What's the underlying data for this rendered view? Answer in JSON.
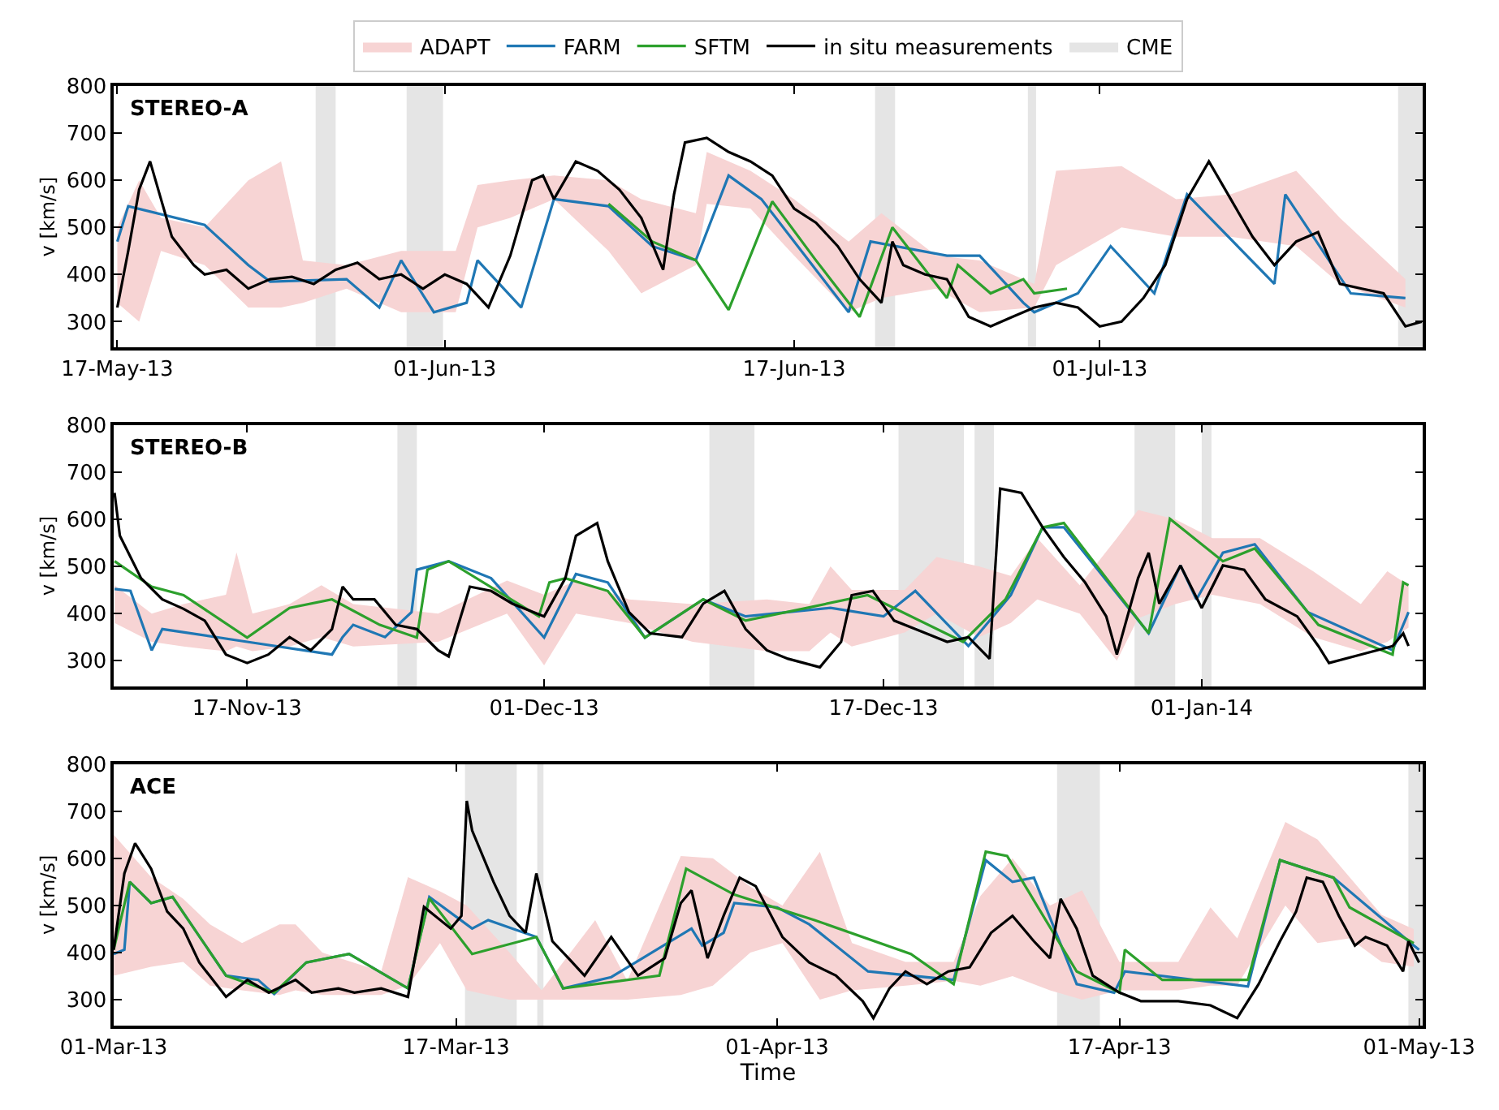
{
  "chart_data": [
    {
      "type": "line",
      "title": "STEREO-A",
      "ylabel": "v [km/s]",
      "legend": "top",
      "grid": false,
      "marker": "none",
      "xlim": [
        "2013-05-16T20:00",
        "2013-07-15T19:00"
      ],
      "xticks": [
        {
          "value": "2013-05-17",
          "label": "17-May-13"
        },
        {
          "value": "2013-06-01",
          "label": "01-Jun-13"
        },
        {
          "value": "2013-06-17",
          "label": "17-Jun-13"
        },
        {
          "value": "2013-07-01",
          "label": "01-Jul-13"
        }
      ],
      "ylim": [
        245,
        800
      ],
      "yticks": [
        300,
        400,
        500,
        600,
        700,
        800
      ],
      "series": [
        {
          "name": "ADAPT",
          "type": "area",
          "color": "#f7d4d4",
          "values": [
            null,
            null,
            null,
            null,
            null,
            null,
            null,
            null,
            null,
            null,
            null,
            null,
            null,
            null,
            null,
            null,
            null,
            null,
            null,
            null,
            null,
            null,
            null,
            null,
            null,
            null,
            null,
            null,
            null,
            null,
            null
          ],
          "x": [
            "2013-05-17",
            "2013-05-18",
            "2013-05-19",
            "2013-05-21",
            "2013-05-23",
            "2013-05-24T12:00",
            "2013-05-25T12:00",
            "2013-05-27T12:00",
            "2013-05-30",
            "2013-06-01T12:00",
            "2013-06-02T12:00",
            "2013-06-04",
            "2013-06-06",
            "2013-06-08T12:00",
            "2013-06-10",
            "2013-06-12T12:00",
            "2013-06-13",
            "2013-06-15",
            "2013-06-17",
            "2013-06-19T12:00",
            "2013-06-21",
            "2013-06-23T12:00",
            "2013-06-25T12:00",
            "2013-06-28",
            "2013-06-29",
            "2013-07-02",
            "2013-07-04T12:00",
            "2013-07-07",
            "2013-07-10",
            "2013-07-12",
            "2013-07-15"
          ],
          "lower": [
            340,
            300,
            450,
            420,
            330,
            330,
            340,
            370,
            320,
            320,
            500,
            520,
            560,
            450,
            360,
            420,
            550,
            540,
            440,
            320,
            350,
            370,
            320,
            330,
            420,
            500,
            480,
            480,
            460,
            380,
            330
          ],
          "upper": [
            500,
            600,
            520,
            500,
            600,
            640,
            430,
            420,
            450,
            450,
            590,
            600,
            610,
            600,
            560,
            530,
            660,
            620,
            560,
            470,
            530,
            440,
            430,
            380,
            620,
            630,
            560,
            570,
            620,
            520,
            390
          ]
        },
        {
          "name": "FARM",
          "color": "#1f77b4",
          "x": [
            "2013-05-17",
            "2013-05-17T12:00",
            "2013-05-21",
            "2013-05-23",
            "2013-05-24",
            "2013-05-27T12:00",
            "2013-05-29",
            "2013-05-30",
            "2013-05-31T12:00",
            "2013-06-02",
            "2013-06-02T12:00",
            "2013-06-04T12:00",
            "2013-06-06",
            "2013-06-08T12:00",
            "2013-06-10T12:00",
            "2013-06-12T12:00",
            "2013-06-14",
            "2013-06-15T12:00",
            "2013-06-19T12:00",
            "2013-06-20T12:00",
            "2013-06-24",
            "2013-06-25T12:00",
            "2013-06-27T12:00",
            "2013-06-28",
            "2013-06-30",
            "2013-07-01T12:00",
            "2013-07-03T12:00",
            "2013-07-05",
            "2013-07-09",
            "2013-07-09T12:00",
            "2013-07-12T12:00",
            "2013-07-15"
          ],
          "values": [
            470,
            545,
            505,
            420,
            385,
            390,
            330,
            430,
            320,
            340,
            430,
            330,
            560,
            545,
            460,
            430,
            610,
            560,
            320,
            470,
            440,
            440,
            340,
            320,
            360,
            460,
            360,
            570,
            380,
            570,
            360,
            350
          ]
        },
        {
          "name": "SFTM",
          "color": "#2ca02c",
          "x": [
            "2013-06-08T12:00",
            "2013-06-10T12:00",
            "2013-06-12T12:00",
            "2013-06-14",
            "2013-06-16",
            "2013-06-18",
            "2013-06-20",
            "2013-06-21T12:00",
            "2013-06-24",
            "2013-06-24T12:00",
            "2013-06-26",
            "2013-06-27T12:00",
            "2013-06-28",
            "2013-06-29T12:00"
          ],
          "values": [
            550,
            470,
            430,
            325,
            555,
            430,
            310,
            500,
            350,
            420,
            360,
            390,
            360,
            370
          ]
        },
        {
          "name": "in situ measurements",
          "color": "#000000",
          "x": [
            "2013-05-17",
            "2013-05-17T12:00",
            "2013-05-18",
            "2013-05-18T12:00",
            "2013-05-19",
            "2013-05-19T12:00",
            "2013-05-20T12:00",
            "2013-05-21",
            "2013-05-22",
            "2013-05-23",
            "2013-05-24",
            "2013-05-25",
            "2013-05-26",
            "2013-05-27",
            "2013-05-28",
            "2013-05-29",
            "2013-05-30",
            "2013-05-31",
            "2013-06-01",
            "2013-06-02",
            "2013-06-03",
            "2013-06-04",
            "2013-06-05",
            "2013-06-05T12:00",
            "2013-06-06",
            "2013-06-07",
            "2013-06-08",
            "2013-06-09",
            "2013-06-10",
            "2013-06-11",
            "2013-06-11T12:00",
            "2013-06-12",
            "2013-06-13",
            "2013-06-14",
            "2013-06-15",
            "2013-06-16",
            "2013-06-17",
            "2013-06-18",
            "2013-06-19",
            "2013-06-20",
            "2013-06-21",
            "2013-06-21T12:00",
            "2013-06-22",
            "2013-06-23",
            "2013-06-24",
            "2013-06-25",
            "2013-06-26",
            "2013-06-27",
            "2013-06-28",
            "2013-06-29",
            "2013-06-30",
            "2013-07-01",
            "2013-07-02",
            "2013-07-03",
            "2013-07-04",
            "2013-07-05",
            "2013-07-06",
            "2013-07-07",
            "2013-07-08",
            "2013-07-09",
            "2013-07-10",
            "2013-07-11",
            "2013-07-12",
            "2013-07-13",
            "2013-07-14",
            "2013-07-15",
            "2013-07-15T18:00"
          ],
          "values": [
            330,
            450,
            580,
            640,
            560,
            480,
            420,
            400,
            410,
            370,
            390,
            395,
            380,
            410,
            425,
            390,
            400,
            370,
            400,
            380,
            330,
            440,
            600,
            610,
            560,
            640,
            620,
            580,
            520,
            410,
            570,
            680,
            690,
            660,
            640,
            610,
            540,
            510,
            460,
            390,
            340,
            470,
            420,
            400,
            390,
            310,
            290,
            310,
            330,
            340,
            330,
            290,
            300,
            350,
            420,
            560,
            640,
            560,
            480,
            420,
            470,
            490,
            380,
            370,
            360,
            290,
            300
          ]
        }
      ],
      "bands": [
        {
          "axis": "x",
          "from": "2013-05-26T02:00",
          "to": "2013-05-27T00:00",
          "label": "CME",
          "color": "#e5e5e5"
        },
        {
          "axis": "x",
          "from": "2013-05-30T06:00",
          "to": "2013-05-31T22:00",
          "color": "#e5e5e5"
        },
        {
          "axis": "x",
          "from": "2013-06-20T17:00",
          "to": "2013-06-21T15:00",
          "color": "#e5e5e5"
        },
        {
          "axis": "x",
          "from": "2013-06-27T17:00",
          "to": "2013-06-28T02:00",
          "color": "#e5e5e5"
        },
        {
          "axis": "x",
          "from": "2013-07-14T16:00",
          "to": "2013-07-15T19:00",
          "color": "#e5e5e5"
        }
      ]
    },
    {
      "type": "line",
      "title": "STEREO-B",
      "ylabel": "v [km/s]",
      "legend": false,
      "grid": false,
      "marker": "none",
      "xlim": [
        "2013-11-10T17:00",
        "2014-01-11T10:00"
      ],
      "xticks": [
        {
          "value": "2013-11-17",
          "label": "17-Nov-13"
        },
        {
          "value": "2013-12-01",
          "label": "01-Dec-13"
        },
        {
          "value": "2013-12-17",
          "label": "17-Dec-13"
        },
        {
          "value": "2014-01-01",
          "label": "01-Jan-14"
        }
      ],
      "ylim": [
        245,
        800
      ],
      "yticks": [
        300,
        400,
        500,
        600,
        700,
        800
      ],
      "series": [
        {
          "type": "area",
          "color": "#f7d4d4",
          "values": [
            null,
            null,
            null,
            null,
            null,
            null,
            null,
            null,
            null,
            null,
            null,
            null,
            null,
            null,
            null,
            null,
            null,
            null,
            null,
            null,
            null,
            null,
            null,
            null,
            null,
            null,
            null,
            null,
            null,
            null,
            null,
            null,
            null,
            null
          ],
          "x": [
            "2013-11-10T18:00",
            "2013-11-12T12:00",
            "2013-11-14",
            "2013-11-16",
            "2013-11-16T12:00",
            "2013-11-17T06:00",
            "2013-11-19",
            "2013-11-20T12:00",
            "2013-11-22",
            "2013-11-26",
            "2013-11-29T06:00",
            "2013-12-01",
            "2013-12-02T12:00",
            "2013-12-05",
            "2013-12-08",
            "2013-12-11T12:00",
            "2013-12-13T12:00",
            "2013-12-14T12:00",
            "2013-12-15T12:00",
            "2013-12-18",
            "2013-12-19T12:00",
            "2013-12-21T12:00",
            "2013-12-23",
            "2013-12-24T06:00",
            "2013-12-26T06:00",
            "2013-12-28",
            "2013-12-29",
            "2013-12-30T18:00",
            "2014-01-01T12:00",
            "2014-01-03T18:00",
            "2014-01-06T06:00",
            "2014-01-08T12:00",
            "2014-01-09T18:00",
            "2014-01-10T18:00"
          ],
          "lower": [
            380,
            340,
            330,
            320,
            330,
            320,
            330,
            350,
            330,
            340,
            400,
            290,
            400,
            380,
            340,
            320,
            320,
            360,
            330,
            360,
            400,
            350,
            380,
            430,
            400,
            300,
            390,
            420,
            440,
            420,
            350,
            320,
            340,
            370
          ],
          "upper": [
            460,
            400,
            420,
            440,
            530,
            400,
            420,
            460,
            420,
            400,
            470,
            440,
            470,
            430,
            420,
            430,
            420,
            500,
            450,
            450,
            520,
            500,
            480,
            560,
            460,
            560,
            620,
            600,
            560,
            560,
            490,
            420,
            490,
            460
          ]
        },
        {
          "color": "#1f77b4",
          "x": [
            "2013-11-10T18:00",
            "2013-11-11T12:00",
            "2013-11-12T12:00",
            "2013-11-13",
            "2013-11-17",
            "2013-11-21",
            "2013-11-21T12:00",
            "2013-11-22",
            "2013-11-23T12:00",
            "2013-11-24T18:00",
            "2013-11-25",
            "2013-11-26T12:00",
            "2013-11-28T12:00",
            "2013-12-01",
            "2013-12-02T12:00",
            "2013-12-04",
            "2013-12-05T18:00",
            "2013-12-08T12:00",
            "2013-12-10T12:00",
            "2013-12-14T12:00",
            "2013-12-17",
            "2013-12-18T12:00",
            "2013-12-21",
            "2013-12-23",
            "2013-12-24T12:00",
            "2013-12-25T12:00",
            "2013-12-29T12:00",
            "2013-12-31",
            "2013-12-31T18:00",
            "2014-01-02",
            "2014-01-03T12:00",
            "2014-01-06",
            "2014-01-10",
            "2014-01-10T18:00"
          ],
          "values": [
            452,
            448,
            322,
            367,
            340,
            313,
            350,
            376,
            350,
            403,
            493,
            511,
            475,
            349,
            484,
            466,
            349,
            430,
            394,
            412,
            394,
            448,
            331,
            439,
            583,
            583,
            358,
            502,
            430,
            529,
            547,
            403,
            322,
            403
          ]
        },
        {
          "color": "#2ca02c",
          "x": [
            "2013-11-10T18:00",
            "2013-11-12T12:00",
            "2013-11-14",
            "2013-11-17",
            "2013-11-19",
            "2013-11-21",
            "2013-11-23T06:00",
            "2013-11-25",
            "2013-11-25T12:00",
            "2013-11-26T12:00",
            "2013-11-30T18:00",
            "2013-12-01T06:00",
            "2013-12-02",
            "2013-12-04",
            "2013-12-05T18:00",
            "2013-12-08T12:00",
            "2013-12-10T12:00",
            "2013-12-16T06:00",
            "2013-12-20T18:00",
            "2013-12-22T18:00",
            "2013-12-24T12:00",
            "2013-12-25T12:00",
            "2013-12-29T12:00",
            "2013-12-30T12:00",
            "2014-01-02",
            "2014-01-03T12:00",
            "2014-01-06T12:00",
            "2014-01-10",
            "2014-01-10T12:00",
            "2014-01-10T18:00"
          ],
          "values": [
            511,
            457,
            439,
            349,
            412,
            430,
            376,
            349,
            493,
            511,
            394,
            466,
            475,
            448,
            349,
            430,
            385,
            439,
            340,
            430,
            583,
            592,
            358,
            601,
            511,
            538,
            376,
            313,
            466,
            460
          ]
        },
        {
          "color": "#000000",
          "x": [
            "2013-11-10T18:00",
            "2013-11-11",
            "2013-11-12",
            "2013-11-13",
            "2013-11-14",
            "2013-11-15",
            "2013-11-16",
            "2013-11-17",
            "2013-11-18",
            "2013-11-19",
            "2013-11-20",
            "2013-11-21",
            "2013-11-21T12:00",
            "2013-11-22",
            "2013-11-23",
            "2013-11-24",
            "2013-11-25",
            "2013-11-26",
            "2013-11-26T12:00",
            "2013-11-27T12:00",
            "2013-11-28T12:00",
            "2013-11-29T12:00",
            "2013-12-01",
            "2013-12-02",
            "2013-12-02T12:00",
            "2013-12-03T12:00",
            "2013-12-04",
            "2013-12-05",
            "2013-12-06",
            "2013-12-07T12:00",
            "2013-12-08T12:00",
            "2013-12-09T12:00",
            "2013-12-10T12:00",
            "2013-12-11T12:00",
            "2013-12-12T12:00",
            "2013-12-14",
            "2013-12-15",
            "2013-12-15T12:00",
            "2013-12-16T12:00",
            "2013-12-17T12:00",
            "2013-12-18T12:00",
            "2013-12-20",
            "2013-12-21",
            "2013-12-22",
            "2013-12-22T12:00",
            "2013-12-23T12:00",
            "2013-12-24T12:00",
            "2013-12-25T12:00",
            "2013-12-26T12:00",
            "2013-12-27T12:00",
            "2013-12-28",
            "2013-12-29",
            "2013-12-29T12:00",
            "2013-12-30",
            "2013-12-31",
            "2014-01-01",
            "2014-01-02",
            "2014-01-03",
            "2014-01-04",
            "2014-01-05T12:00",
            "2014-01-06T12:00",
            "2014-01-07",
            "2014-01-08T12:00",
            "2014-01-10",
            "2014-01-10T12:00",
            "2014-01-10T18:00"
          ],
          "values": [
            656,
            565,
            475,
            430,
            410,
            385,
            313,
            295,
            313,
            350,
            322,
            367,
            457,
            430,
            430,
            376,
            367,
            322,
            309,
            457,
            448,
            421,
            394,
            475,
            565,
            592,
            511,
            403,
            358,
            350,
            421,
            448,
            367,
            322,
            304,
            286,
            340,
            439,
            448,
            385,
            367,
            340,
            350,
            304,
            665,
            656,
            583,
            520,
            466,
            394,
            313,
            475,
            529,
            421,
            502,
            412,
            502,
            493,
            430,
            394,
            331,
            295,
            313,
            331,
            358,
            331
          ]
        }
      ],
      "bands": [
        {
          "axis": "x",
          "from": "2013-11-24T02:00",
          "to": "2013-11-25T00:00",
          "color": "#e5e5e5"
        },
        {
          "axis": "x",
          "from": "2013-12-08T19:00",
          "to": "2013-12-10T22:00",
          "color": "#e5e5e5"
        },
        {
          "axis": "x",
          "from": "2013-12-17T17:00",
          "to": "2013-12-20T19:00",
          "color": "#e5e5e5"
        },
        {
          "axis": "x",
          "from": "2013-12-21T07:00",
          "to": "2013-12-22T05:00",
          "color": "#e5e5e5"
        },
        {
          "axis": "x",
          "from": "2013-12-28T20:00",
          "to": "2013-12-30T18:00",
          "color": "#e5e5e5"
        },
        {
          "axis": "x",
          "from": "2014-01-01T00:00",
          "to": "2014-01-01T11:00",
          "color": "#e5e5e5"
        }
      ]
    },
    {
      "type": "line",
      "title": "ACE",
      "ylabel": "v [km/s]",
      "xlabel": "Time",
      "legend": false,
      "grid": false,
      "marker": "none",
      "xlim": [
        "2013-03-01",
        "2013-05-01T04:00"
      ],
      "xticks": [
        {
          "value": "2013-03-01",
          "label": "01-Mar-13"
        },
        {
          "value": "2013-03-17",
          "label": "17-Mar-13"
        },
        {
          "value": "2013-04-01",
          "label": "01-Apr-13"
        },
        {
          "value": "2013-04-17",
          "label": "17-Apr-13"
        },
        {
          "value": "2013-05-01",
          "label": "01-May-13"
        }
      ],
      "ylim": [
        245,
        800
      ],
      "yticks": [
        300,
        400,
        500,
        600,
        700,
        800
      ],
      "series": [
        {
          "type": "area",
          "color": "#f7d4d4",
          "values": [
            null,
            null,
            null,
            null,
            null,
            null,
            null,
            null,
            null,
            null,
            null,
            null,
            null,
            null,
            null,
            null,
            null,
            null,
            null,
            null,
            null,
            null,
            null,
            null,
            null,
            null,
            null,
            null,
            null,
            null,
            null,
            null,
            null,
            null,
            null,
            null,
            null
          ],
          "x": [
            "2013-03-01",
            "2013-03-02T18:00",
            "2013-03-04T06:00",
            "2013-03-05T12:00",
            "2013-03-07",
            "2013-03-08T18:00",
            "2013-03-09T12:00",
            "2013-03-10T18:00",
            "2013-03-13T12:00",
            "2013-03-14T18:00",
            "2013-03-16T06:00",
            "2013-03-17T12:00",
            "2013-03-19T12:00",
            "2013-03-21",
            "2013-03-23T12:00",
            "2013-03-25",
            "2013-03-27T12:00",
            "2013-03-29",
            "2013-03-30T18:00",
            "2013-04-01T06:00",
            "2013-04-03",
            "2013-04-04T12:00",
            "2013-04-07",
            "2013-04-09T06:00",
            "2013-04-10T12:00",
            "2013-04-12",
            "2013-04-13T18:00",
            "2013-04-15T06:00",
            "2013-04-17",
            "2013-04-19T18:00",
            "2013-04-21T06:00",
            "2013-04-22T12:00",
            "2013-04-24T18:00",
            "2013-04-26T06:00",
            "2013-04-27T18:00",
            "2013-04-29T06:00",
            "2013-04-30T18:00"
          ],
          "lower": [
            351,
            370,
            380,
            330,
            320,
            310,
            320,
            310,
            310,
            330,
            420,
            320,
            300,
            300,
            300,
            300,
            310,
            330,
            400,
            420,
            300,
            320,
            330,
            340,
            330,
            350,
            320,
            300,
            320,
            320,
            330,
            330,
            500,
            420,
            430,
            380,
            370
          ],
          "upper": [
            650,
            560,
            514,
            460,
            420,
            460,
            460,
            400,
            360,
            560,
            530,
            500,
            400,
            320,
            469,
            340,
            605,
            600,
            540,
            500,
            614,
            420,
            380,
            380,
            520,
            600,
            500,
            532,
            380,
            380,
            496,
            430,
            677,
            640,
            560,
            480,
            450
          ]
        },
        {
          "color": "#1f77b4",
          "x": [
            "2013-03-01",
            "2013-03-01T12:00",
            "2013-03-01T18:00",
            "2013-03-02T18:00",
            "2013-03-03T18:00",
            "2013-03-06T06:00",
            "2013-03-07T18:00",
            "2013-03-08T12:00",
            "2013-03-10",
            "2013-03-12",
            "2013-03-14T18:00",
            "2013-03-15T18:00",
            "2013-03-17T18:00",
            "2013-03-18T12:00",
            "2013-03-20T18:00",
            "2013-03-22",
            "2013-03-24T06:00",
            "2013-03-28",
            "2013-03-28T12:00",
            "2013-03-29T12:00",
            "2013-03-30",
            "2013-04-01",
            "2013-04-02T12:00",
            "2013-04-05T06:00",
            "2013-04-09T06:00",
            "2013-04-10T18:00",
            "2013-04-12",
            "2013-04-13",
            "2013-04-15",
            "2013-04-16T18:00",
            "2013-04-17T06:00",
            "2013-04-23",
            "2013-04-24T12:00",
            "2013-04-27",
            "2013-04-30T18:00",
            "2013-05-01"
          ],
          "values": [
            397,
            406,
            550,
            505,
            518,
            351,
            342,
            312,
            379,
            397,
            324,
            518,
            451,
            469,
            433,
            324,
            348,
            451,
            415,
            442,
            505,
            496,
            460,
            360,
            342,
            596,
            550,
            559,
            333,
            315,
            360,
            328,
            596,
            559,
            415,
            406
          ]
        },
        {
          "color": "#2ca02c",
          "x": [
            "2013-03-01",
            "2013-03-01T18:00",
            "2013-03-02T18:00",
            "2013-03-03T18:00",
            "2013-03-06T06:00",
            "2013-03-08T12:00",
            "2013-03-10",
            "2013-03-12",
            "2013-03-14T18:00",
            "2013-03-15T18:00",
            "2013-03-17T18:00",
            "2013-03-20T18:00",
            "2013-03-22",
            "2013-03-26T12:00",
            "2013-03-27T18:00",
            "2013-03-30",
            "2013-04-02T18:00",
            "2013-04-07T06:00",
            "2013-04-09T06:00",
            "2013-04-10T18:00",
            "2013-04-11T18:00",
            "2013-04-15",
            "2013-04-17",
            "2013-04-17T06:00",
            "2013-04-19",
            "2013-04-23",
            "2013-04-24T12:00",
            "2013-04-27",
            "2013-04-27T18:00",
            "2013-04-30T18:00"
          ],
          "values": [
            406,
            550,
            505,
            518,
            351,
            315,
            379,
            397,
            324,
            515,
            397,
            433,
            324,
            351,
            578,
            523,
            469,
            397,
            333,
            614,
            605,
            360,
            315,
            406,
            342,
            342,
            596,
            559,
            496,
            420
          ]
        },
        {
          "color": "#000000",
          "x": [
            "2013-03-01",
            "2013-03-01T12:00",
            "2013-03-02",
            "2013-03-02T18:00",
            "2013-03-03T12:00",
            "2013-03-04T06:00",
            "2013-03-05",
            "2013-03-06T06:00",
            "2013-03-07T06:00",
            "2013-03-08T06:00",
            "2013-03-09T12:00",
            "2013-03-10T06:00",
            "2013-03-11T12:00",
            "2013-03-12T06:00",
            "2013-03-13T12:00",
            "2013-03-14T18:00",
            "2013-03-15T12:00",
            "2013-03-16T18:00",
            "2013-03-17T06:00",
            "2013-03-17T12:00",
            "2013-03-17T18:00",
            "2013-03-18T18:00",
            "2013-03-19T12:00",
            "2013-03-20T06:00",
            "2013-03-20T18:00",
            "2013-03-21T12:00",
            "2013-03-22T06:00",
            "2013-03-23",
            "2013-03-24T06:00",
            "2013-03-25T12:00",
            "2013-03-26T18:00",
            "2013-03-27T12:00",
            "2013-03-28",
            "2013-03-28T18:00",
            "2013-03-29T12:00",
            "2013-03-30T06:00",
            "2013-03-31",
            "2013-04-01T06:00",
            "2013-04-02T12:00",
            "2013-04-03T18:00",
            "2013-04-05",
            "2013-04-05T12:00",
            "2013-04-06T06:00",
            "2013-04-07",
            "2013-04-08",
            "2013-04-09",
            "2013-04-10",
            "2013-04-11",
            "2013-04-12",
            "2013-04-13",
            "2013-04-13T18:00",
            "2013-04-14T06:00",
            "2013-04-15",
            "2013-04-15T18:00",
            "2013-04-17",
            "2013-04-18",
            "2013-04-19T18:00",
            "2013-04-21T06:00",
            "2013-04-22T12:00",
            "2013-04-23T12:00",
            "2013-04-24T12:00",
            "2013-04-25T06:00",
            "2013-04-25T18:00",
            "2013-04-26T12:00",
            "2013-04-27T06:00",
            "2013-04-28",
            "2013-04-28T12:00",
            "2013-04-29T12:00",
            "2013-04-30T06:00",
            "2013-04-30T12:00",
            "2013-05-01"
          ],
          "values": [
            406,
            568,
            632,
            578,
            487,
            451,
            379,
            306,
            342,
            315,
            342,
            315,
            324,
            315,
            324,
            306,
            497,
            451,
            478,
            722,
            659,
            550,
            478,
            442,
            568,
            424,
            388,
            351,
            433,
            351,
            388,
            505,
            532,
            388,
            478,
            559,
            541,
            433,
            379,
            351,
            297,
            261,
            324,
            360,
            333,
            360,
            369,
            442,
            478,
            424,
            388,
            514,
            451,
            351,
            315,
            297,
            297,
            288,
            261,
            333,
            424,
            487,
            559,
            550,
            478,
            415,
            433,
            415,
            360,
            424,
            379
          ]
        }
      ],
      "bands": [
        {
          "axis": "x",
          "from": "2013-03-17T10:00",
          "to": "2013-03-19T20:00",
          "color": "#e5e5e5"
        },
        {
          "axis": "x",
          "from": "2013-03-20T19:00",
          "to": "2013-03-21T02:00",
          "color": "#e5e5e5"
        },
        {
          "axis": "x",
          "from": "2013-04-14T02:00",
          "to": "2013-04-16T02:00",
          "color": "#e5e5e5"
        },
        {
          "axis": "x",
          "from": "2013-04-30T12:00",
          "to": "2013-05-01T04:00",
          "color": "#e5e5e5"
        }
      ]
    }
  ]
}
